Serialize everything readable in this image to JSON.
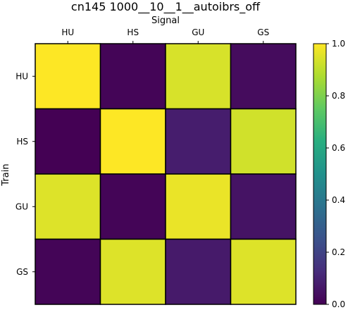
{
  "chart_data": {
    "type": "heatmap",
    "title": "cn145 1000__10__1__autoibrs_off",
    "xlabel": "Signal",
    "ylabel": "Train",
    "x_categories": [
      "HU",
      "HS",
      "GU",
      "GS"
    ],
    "y_categories": [
      "HU",
      "HS",
      "GU",
      "GS"
    ],
    "values": [
      [
        1.0,
        0.01,
        0.94,
        0.03
      ],
      [
        0.0,
        1.0,
        0.08,
        0.93
      ],
      [
        0.95,
        0.01,
        0.97,
        0.05
      ],
      [
        0.01,
        0.95,
        0.07,
        0.95
      ]
    ],
    "colormap": "viridis",
    "zlim": [
      0.0,
      1.0
    ],
    "colorbar_ticks": [
      0.0,
      0.2,
      0.4,
      0.6,
      0.8,
      1.0
    ],
    "colorbar_tick_labels": [
      "0.0",
      "0.2",
      "0.4",
      "0.6",
      "0.8",
      "1.0"
    ],
    "grid": true,
    "x_axis_position": "top",
    "colorbar_position": "right"
  }
}
